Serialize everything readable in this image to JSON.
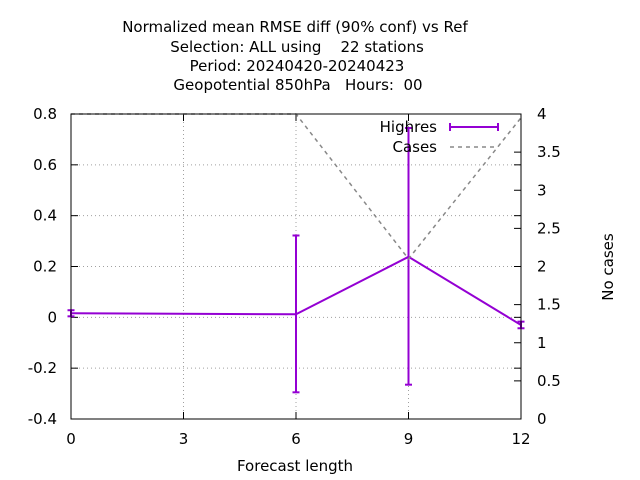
{
  "chart_data": {
    "type": "line",
    "title_lines": [
      "Normalized mean RMSE diff (90% conf) vs Ref",
      "Selection: ALL using    22 stations",
      "Period: 20240420-20240423",
      "Geopotential 850hPa   Hours:  00"
    ],
    "xlabel": "Forecast length",
    "ylabel": "",
    "y2label": "No cases",
    "xlim": [
      0,
      12
    ],
    "ylim": [
      -0.4,
      0.8
    ],
    "y2lim": [
      0,
      4
    ],
    "x_ticks": [
      "0",
      "3",
      "6",
      "9",
      "12"
    ],
    "y_ticks": [
      "-0.4",
      "-0.2",
      "0",
      "0.2",
      "0.4",
      "0.6",
      "0.8"
    ],
    "y2_ticks": [
      "0",
      "0.5",
      "1",
      "1.5",
      "2",
      "2.5",
      "3",
      "3.5",
      "4"
    ],
    "grid": true,
    "legend_position": "top-right",
    "series": [
      {
        "name": "Highres",
        "axis": "y",
        "color": "#9400d3",
        "style": "linespoints-errorbars",
        "x": [
          0,
          6,
          9,
          12
        ],
        "y": [
          0.016,
          0.012,
          0.238,
          -0.03
        ],
        "err_low": [
          0.004,
          -0.295,
          -0.265,
          -0.043
        ],
        "err_high": [
          0.028,
          0.322,
          0.745,
          -0.017
        ]
      },
      {
        "name": "Cases",
        "axis": "y2",
        "color": "#888888",
        "style": "dashed",
        "x": [
          0,
          6,
          9,
          12
        ],
        "y": [
          4,
          4,
          2.1,
          3.95
        ]
      }
    ]
  }
}
